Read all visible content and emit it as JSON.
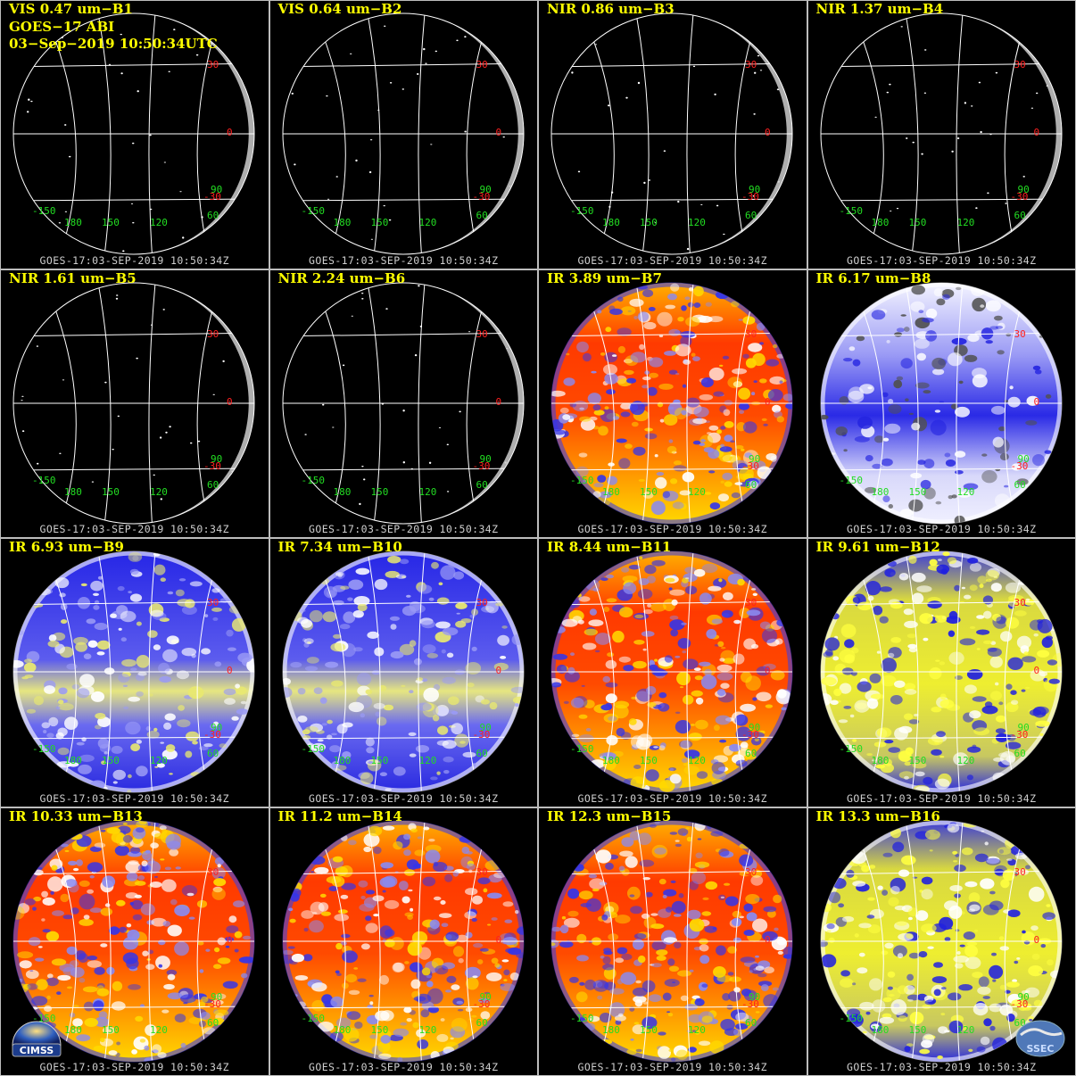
{
  "header": {
    "line2": "GOES−17 ABI",
    "line3": "03−Sep−2019 10:50:34UTC"
  },
  "footer_text": "GOES-17:03-SEP-2019 10:50:34Z",
  "lat_labels": [
    "30",
    "0",
    "-30"
  ],
  "lon_labels": [
    "-150",
    "180",
    "150",
    "120",
    "60",
    "90"
  ],
  "panels": [
    {
      "label": "VIS 0.47 um−B1",
      "style": "vis"
    },
    {
      "label": "VIS 0.64 um−B2",
      "style": "vis"
    },
    {
      "label": "NIR 0.86 um−B3",
      "style": "vis"
    },
    {
      "label": "NIR 1.37 um−B4",
      "style": "vis"
    },
    {
      "label": "NIR 1.61 um−B5",
      "style": "vis"
    },
    {
      "label": "NIR 2.24 um−B6",
      "style": "vis"
    },
    {
      "label": "IR 3.89 um−B7",
      "style": "ir_warm"
    },
    {
      "label": "IR 6.17 um−B8",
      "style": "wv_white"
    },
    {
      "label": "IR 6.93 um−B9",
      "style": "wv_blue"
    },
    {
      "label": "IR 7.34 um−B10",
      "style": "wv_blue"
    },
    {
      "label": "IR 8.44 um−B11",
      "style": "ir_warm"
    },
    {
      "label": "IR 9.61 um−B12",
      "style": "ozone"
    },
    {
      "label": "IR 10.33 um−B13",
      "style": "ir_warm"
    },
    {
      "label": "IR 11.2 um−B14",
      "style": "ir_warm"
    },
    {
      "label": "IR 12.3 um−B15",
      "style": "ir_warm"
    },
    {
      "label": "IR 13.3 um−B16",
      "style": "ozone"
    }
  ],
  "logos": {
    "left": "CIMSS",
    "right": "SSEC"
  },
  "colors": {
    "label": "#ffff00",
    "lat_label": "#ff2020",
    "lon_label": "#22dd22",
    "grid": "#ffffff",
    "ir_warm": [
      "#ff2a00",
      "#ff7a00",
      "#ffd400",
      "#3030e0"
    ],
    "wv_blue": [
      "#2020e0",
      "#6868f0",
      "#e8e880"
    ],
    "wv_white": [
      "#f0f0ff",
      "#2020e0"
    ],
    "ozone": [
      "#e8e820",
      "#2020e0"
    ]
  }
}
